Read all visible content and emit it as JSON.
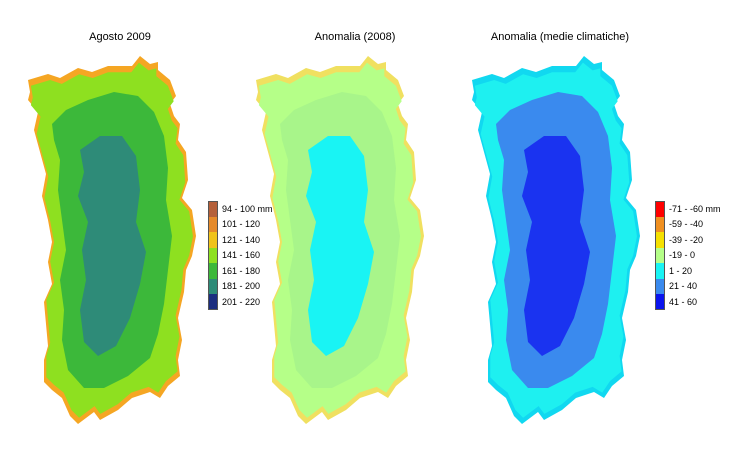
{
  "panels": [
    {
      "title": "Agosto 2009",
      "colors": {
        "outer": "#f5a623",
        "coast": "#8ee020",
        "main": "#3cb83a",
        "inner": "#2e8b78"
      },
      "legend": [
        {
          "label": "94 - 100 mm",
          "color": "#b5603a"
        },
        {
          "label": "101 - 120",
          "color": "#e58a2a"
        },
        {
          "label": "121 - 140",
          "color": "#f0c31a"
        },
        {
          "label": "141 - 160",
          "color": "#8ee020"
        },
        {
          "label": "161 - 180",
          "color": "#3cb83a"
        },
        {
          "label": "181 - 200",
          "color": "#2e8b78"
        },
        {
          "label": "201 - 220",
          "color": "#1c2e80"
        }
      ]
    },
    {
      "title": "Anomalia (2008)",
      "colors": {
        "outer": "#f0e060",
        "coast": "#b5ff88",
        "main": "#a8f58a",
        "inner": "#19f4f4"
      },
      "legend": []
    },
    {
      "title": "Anomalia (medie climatiche)",
      "colors": {
        "outer": "#11d8f0",
        "coast": "#1ef0f0",
        "main": "#3a8aee",
        "inner": "#1a33f0"
      },
      "legend": [
        {
          "label": "-71 - -60 mm",
          "color": "#ff0000"
        },
        {
          "label": "-59 - -40",
          "color": "#f09020"
        },
        {
          "label": "-39 - -20",
          "color": "#f5e000"
        },
        {
          "label": "-19 - 0",
          "color": "#b5ff88"
        },
        {
          "label": "1 - 20",
          "color": "#19f4f4"
        },
        {
          "label": "21 - 40",
          "color": "#3a8aee"
        },
        {
          "label": "41 - 60",
          "color": "#0a14ee"
        }
      ]
    }
  ]
}
